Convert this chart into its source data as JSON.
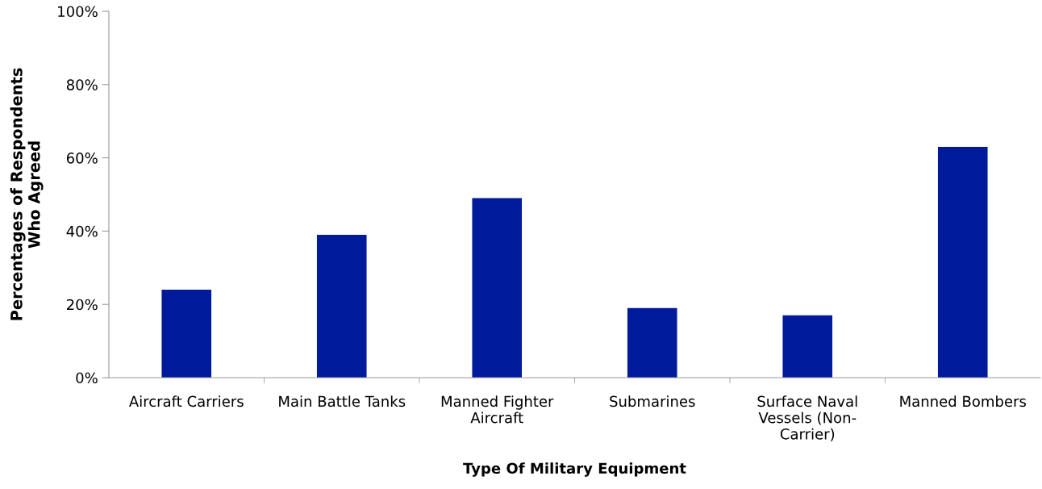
{
  "chart_data": {
    "type": "bar",
    "xlabel": "Type Of Military Equipment",
    "ylabel": "Percentages of Respondents Who Agreed",
    "categories": [
      "Aircraft Carriers",
      "Main Battle Tanks",
      "Manned Fighter Aircraft",
      "Submarines",
      "Surface Naval Vessels (Non-Carrier)",
      "Manned Bombers"
    ],
    "values": [
      24,
      39,
      49,
      19,
      17,
      63
    ],
    "color": "#001a9c",
    "ylim": [
      0,
      100
    ],
    "yticks": [
      {
        "value": 0,
        "label": "0%"
      },
      {
        "value": 20,
        "label": "20%"
      },
      {
        "value": 40,
        "label": "40%"
      },
      {
        "value": 60,
        "label": "60%"
      },
      {
        "value": 80,
        "label": "80%"
      },
      {
        "value": 100,
        "label": "100%"
      }
    ],
    "grid": false,
    "legend": false
  }
}
